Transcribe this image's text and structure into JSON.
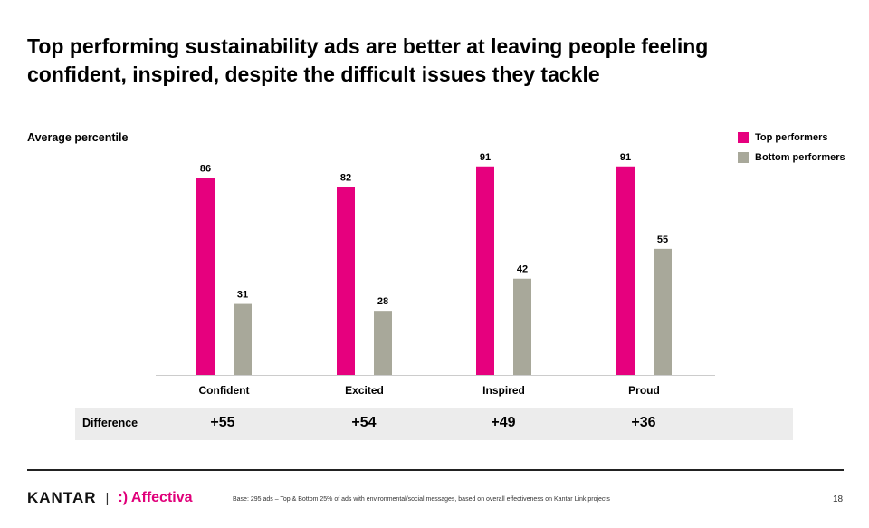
{
  "slide": {
    "title_line1": "Top performing sustainability ads are better at leaving people feeling",
    "title_line2": "confident, inspired, despite the difficult issues they tackle",
    "ylabel": "Average percentile",
    "difference_label": "Difference",
    "differences": [
      "+55",
      "+54",
      "+49",
      "+36"
    ],
    "footer": {
      "brand1": "KANTAR",
      "separator": "|",
      "brand2": ":) Affectiva",
      "base_note": "Base:  295 ads – Top & Bottom 25% of ads with environmental/social  messages, based on overall  effectiveness  on Kantar Link projects",
      "page_number": "18"
    }
  },
  "colors": {
    "top": "#e6007e",
    "bottom": "#a8a89a",
    "axis": "#cccccc"
  },
  "chart_data": {
    "type": "bar",
    "title": "Top performing sustainability ads are better at leaving people feeling confident, inspired, despite the difficult issues they tackle",
    "ylabel": "Average percentile",
    "xlabel": "",
    "categories": [
      "Confident",
      "Excited",
      "Inspired",
      "Proud"
    ],
    "series": [
      {
        "name": "Top performers",
        "values": [
          86,
          82,
          91,
          91
        ]
      },
      {
        "name": "Bottom performers",
        "values": [
          31,
          28,
          42,
          55
        ]
      }
    ],
    "ylim": [
      0,
      100
    ],
    "grid": false,
    "legend": "top-right"
  }
}
